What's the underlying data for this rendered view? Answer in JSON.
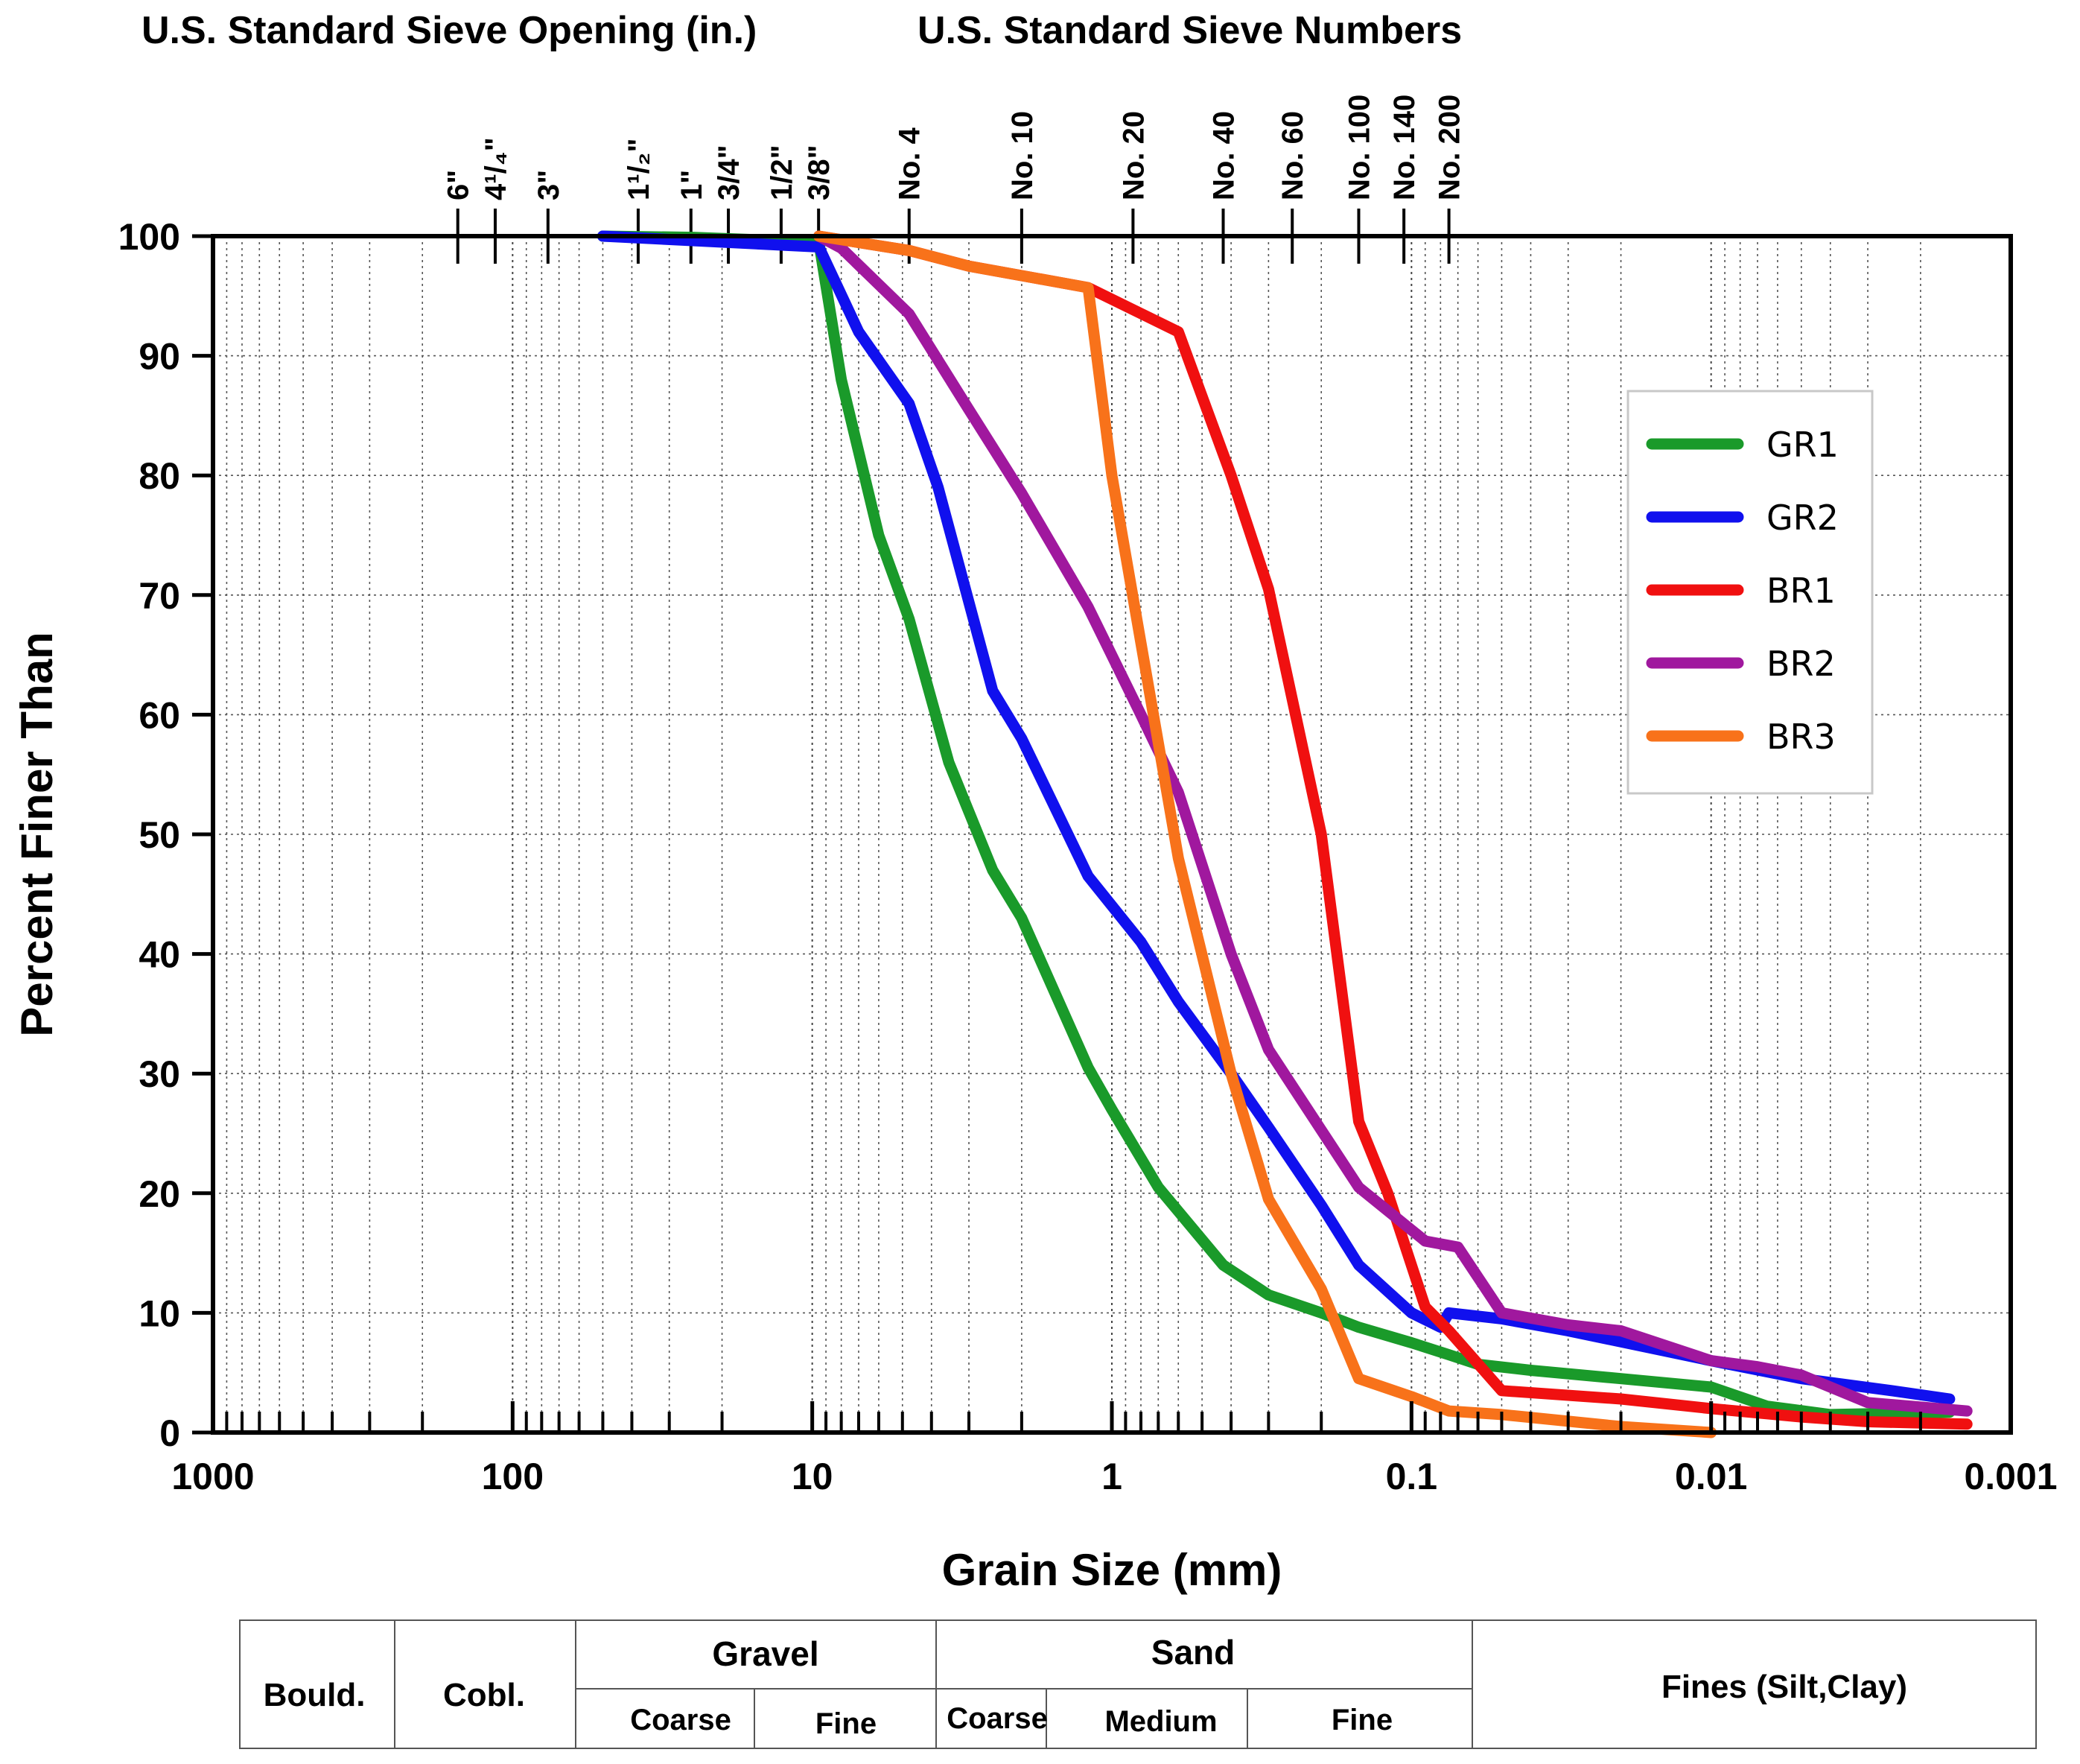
{
  "chart_data": {
    "type": "line",
    "top_titles": {
      "left": "U.S. Standard Sieve Opening (in.)",
      "right": "U.S. Standard Sieve Numbers"
    },
    "xlabel": "Grain Size (mm)",
    "ylabel": "Percent Finer Than",
    "x_scale": "log",
    "x_reversed": true,
    "xlim": [
      1000,
      0.001
    ],
    "ylim": [
      0,
      100
    ],
    "x_tick_labels": [
      {
        "value": 1000,
        "label": "1000"
      },
      {
        "value": 100,
        "label": "100"
      },
      {
        "value": 10,
        "label": "10"
      },
      {
        "value": 1,
        "label": "1"
      },
      {
        "value": 0.1,
        "label": "0.1"
      },
      {
        "value": 0.01,
        "label": "0.01"
      },
      {
        "value": 0.001,
        "label": "0.001"
      }
    ],
    "y_ticks": [
      0,
      10,
      20,
      30,
      40,
      50,
      60,
      70,
      80,
      90,
      100
    ],
    "sieve_marks": [
      {
        "mm": 152.4,
        "label": "6\""
      },
      {
        "mm": 114.3,
        "label": "4¹/₄\""
      },
      {
        "mm": 76.2,
        "label": "3\""
      },
      {
        "mm": 38.1,
        "label": "1¹/₂\""
      },
      {
        "mm": 25.4,
        "label": "1\""
      },
      {
        "mm": 19.05,
        "label": "3/4\""
      },
      {
        "mm": 12.7,
        "label": "1/2\""
      },
      {
        "mm": 9.525,
        "label": "3/8\""
      },
      {
        "mm": 4.75,
        "label": "No. 4"
      },
      {
        "mm": 2.0,
        "label": "No. 10"
      },
      {
        "mm": 0.85,
        "label": "No. 20"
      },
      {
        "mm": 0.425,
        "label": "No. 40"
      },
      {
        "mm": 0.25,
        "label": "No. 60"
      },
      {
        "mm": 0.15,
        "label": "No. 100"
      },
      {
        "mm": 0.106,
        "label": "No. 140"
      },
      {
        "mm": 0.075,
        "label": "No. 200"
      }
    ],
    "series": [
      {
        "name": "GR1",
        "color": "#1a9a2a",
        "x": [
          50,
          25,
          9.5,
          8,
          6,
          4.75,
          3.5,
          2.5,
          2,
          1.2,
          1,
          0.7,
          0.425,
          0.3,
          0.2,
          0.15,
          0.1,
          0.075,
          0.06,
          0.04,
          0.02,
          0.01,
          0.0065,
          0.004,
          0.0016
        ],
        "y": [
          100,
          99.9,
          99.5,
          88,
          75,
          68,
          56,
          47,
          43,
          30.5,
          27,
          20.5,
          14,
          11.5,
          10,
          8.8,
          7.5,
          6.5,
          5.7,
          5.2,
          4.5,
          3.8,
          2.2,
          1.5,
          1.7
        ]
      },
      {
        "name": "GR2",
        "color": "#1010ee",
        "x": [
          50,
          9.5,
          7,
          4.75,
          3.8,
          2.5,
          2,
          1.2,
          0.8,
          0.6,
          0.4,
          0.3,
          0.2,
          0.15,
          0.1,
          0.08,
          0.075,
          0.05,
          0.03,
          0.01,
          0.005,
          0.0025,
          0.0016
        ],
        "y": [
          100,
          99.1,
          92,
          86,
          79,
          62,
          58,
          46.5,
          41,
          36,
          30,
          25.5,
          19,
          14,
          10,
          8.8,
          10,
          9.5,
          8.5,
          6,
          4.5,
          3.5,
          2.8
        ]
      },
      {
        "name": "BR1",
        "color": "#f01010",
        "x": [
          9.5,
          4.75,
          3,
          1.2,
          0.6,
          0.4,
          0.3,
          0.2,
          0.15,
          0.12,
          0.09,
          0.075,
          0.05,
          0.02,
          0.01,
          0.005,
          0.003,
          0.0014
        ],
        "y": [
          100,
          98.8,
          97.5,
          95.7,
          92,
          80,
          70.5,
          50,
          26,
          20,
          10.5,
          8.5,
          3.5,
          2.8,
          2,
          1.3,
          0.9,
          0.7
        ]
      },
      {
        "name": "BR2",
        "color": "#a0189e",
        "x": [
          9.5,
          8,
          4.75,
          3,
          2,
          1.2,
          0.8,
          0.6,
          0.4,
          0.3,
          0.15,
          0.09,
          0.07,
          0.05,
          0.03,
          0.02,
          0.01,
          0.007,
          0.005,
          0.003,
          0.0014
        ],
        "y": [
          100,
          99,
          93.5,
          85.5,
          78.5,
          69,
          60,
          53.5,
          40,
          32,
          20.5,
          16,
          15.5,
          10,
          9,
          8.5,
          6,
          5.5,
          4.8,
          2.5,
          1.8
        ]
      },
      {
        "name": "BR3",
        "color": "#f8721a",
        "x": [
          9.5,
          4.75,
          3,
          1.2,
          1.0,
          0.8,
          0.6,
          0.4,
          0.3,
          0.2,
          0.15,
          0.1,
          0.075,
          0.05,
          0.02,
          0.01
        ],
        "y": [
          100,
          98.8,
          97.5,
          95.7,
          80,
          66,
          48,
          30,
          19.5,
          12,
          4.5,
          3,
          1.8,
          1.5,
          0.5,
          0
        ]
      }
    ],
    "legend_position": "right"
  },
  "classification_table": {
    "boulders": "Bould.",
    "cobbles": "Cobl.",
    "gravel": "Gravel",
    "gravel_coarse": "Coarse",
    "gravel_fine": "Fine",
    "sand": "Sand",
    "sand_coarse": "Coarse",
    "sand_medium": "Medium",
    "sand_fine": "Fine",
    "fines": "Fines (Silt,Clay)"
  }
}
